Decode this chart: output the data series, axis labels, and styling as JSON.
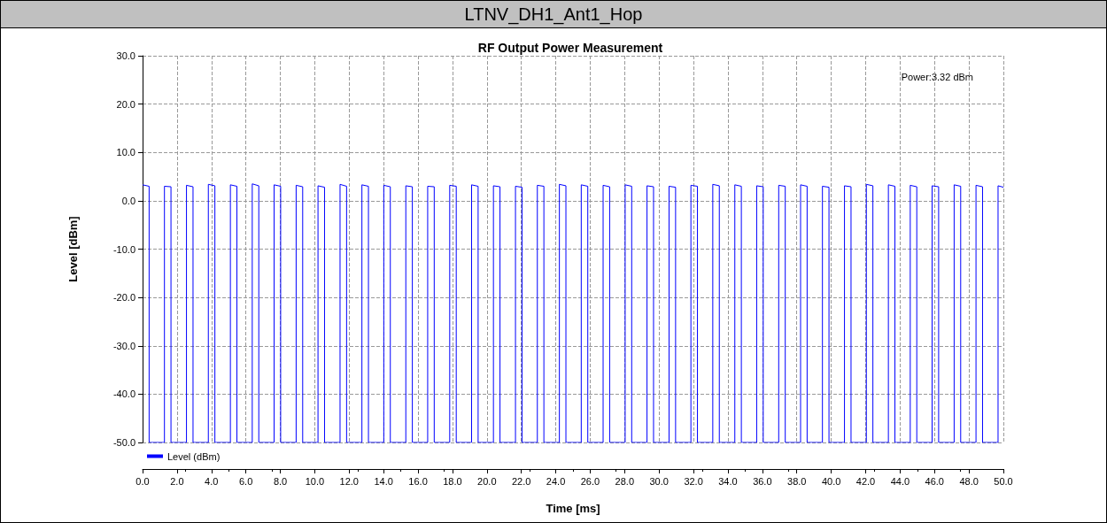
{
  "chart_data": {
    "type": "line",
    "title": "LTNV_DH1_Ant1_Hop",
    "subtitle": "RF Output Power Measurement",
    "xlabel": "Time [ms]",
    "ylabel": "Level [dBm]",
    "annotations": [
      "Power:3.32 dBm"
    ],
    "xlim": [
      0,
      50
    ],
    "ylim": [
      -50,
      30
    ],
    "xticks": [
      {
        "value": 0,
        "label": "0.0"
      },
      {
        "value": 2,
        "label": "2.0"
      },
      {
        "value": 4,
        "label": "4.0"
      },
      {
        "value": 6,
        "label": "6.0"
      },
      {
        "value": 8,
        "label": "8.0"
      },
      {
        "value": 10,
        "label": "10.0"
      },
      {
        "value": 12,
        "label": "12.0"
      },
      {
        "value": 14,
        "label": "14.0"
      },
      {
        "value": 16,
        "label": "16.0"
      },
      {
        "value": 18,
        "label": "18.0"
      },
      {
        "value": 20,
        "label": "20.0"
      },
      {
        "value": 22,
        "label": "22.0"
      },
      {
        "value": 24,
        "label": "24.0"
      },
      {
        "value": 26,
        "label": "26.0"
      },
      {
        "value": 28,
        "label": "28.0"
      },
      {
        "value": 30,
        "label": "30.0"
      },
      {
        "value": 32,
        "label": "32.0"
      },
      {
        "value": 34,
        "label": "34.0"
      },
      {
        "value": 36,
        "label": "36.0"
      },
      {
        "value": 38,
        "label": "38.0"
      },
      {
        "value": 40,
        "label": "40.0"
      },
      {
        "value": 42,
        "label": "42.0"
      },
      {
        "value": 44,
        "label": "44.0"
      },
      {
        "value": 46,
        "label": "46.0"
      },
      {
        "value": 48,
        "label": "48.0"
      },
      {
        "value": 50,
        "label": "50.0"
      }
    ],
    "yticks": [
      {
        "value": -50,
        "label": "-50.0"
      },
      {
        "value": -40,
        "label": "-40.0"
      },
      {
        "value": -30,
        "label": "-30.0"
      },
      {
        "value": -20,
        "label": "-20.0"
      },
      {
        "value": -10,
        "label": "-10.0"
      },
      {
        "value": 0,
        "label": "0.0"
      },
      {
        "value": 10,
        "label": "10.0"
      },
      {
        "value": 20,
        "label": "20.0"
      },
      {
        "value": 30,
        "label": "30.0"
      }
    ],
    "grid": true,
    "legend": "bottom left",
    "marker": "none",
    "line_style": "solid",
    "series": [
      {
        "name": "Level (dBm)",
        "color": "#0000ff",
        "x": [
          0,
          0.38,
          0.38,
          1.27,
          1.27,
          1.65,
          1.65,
          2.55,
          2.55,
          2.93,
          2.93,
          3.82,
          3.82,
          4.2,
          4.2,
          5.1,
          5.1,
          5.48,
          5.48,
          6.37,
          6.37,
          6.75,
          6.75,
          7.64,
          7.64,
          8.02,
          8.02,
          8.92,
          8.92,
          9.3,
          9.3,
          10.19,
          10.19,
          10.57,
          10.57,
          11.47,
          11.47,
          11.85,
          11.85,
          12.74,
          12.74,
          13.12,
          13.12,
          14.01,
          14.01,
          14.39,
          14.39,
          15.29,
          15.29,
          15.67,
          15.67,
          16.56,
          16.56,
          16.94,
          16.94,
          17.84,
          17.84,
          18.22,
          18.22,
          19.11,
          19.11,
          19.49,
          19.49,
          20.38,
          20.38,
          20.76,
          20.76,
          21.66,
          21.66,
          22.04,
          22.04,
          22.93,
          22.93,
          23.31,
          23.31,
          24.21,
          24.21,
          24.59,
          24.59,
          25.48,
          25.48,
          25.86,
          25.86,
          26.75,
          26.75,
          27.13,
          27.13,
          28.03,
          28.03,
          28.41,
          28.41,
          29.3,
          29.3,
          29.68,
          29.68,
          30.58,
          30.58,
          30.96,
          30.96,
          31.85,
          31.85,
          32.23,
          32.23,
          33.12,
          33.12,
          33.5,
          33.5,
          34.4,
          34.4,
          34.78,
          34.78,
          35.67,
          35.67,
          36.05,
          36.05,
          36.95,
          36.95,
          37.33,
          37.33,
          38.22,
          38.22,
          38.6,
          38.6,
          39.49,
          39.49,
          39.87,
          39.87,
          40.77,
          40.77,
          41.15,
          41.15,
          42.04,
          42.04,
          42.42,
          42.42,
          43.32,
          43.32,
          43.7,
          43.7,
          44.59,
          44.59,
          44.97,
          44.97,
          45.86,
          45.86,
          46.24,
          46.24,
          47.14,
          47.14,
          47.52,
          47.52,
          48.41,
          48.41,
          48.79,
          48.79,
          49.69,
          49.69,
          50
        ],
        "values": [
          3.3,
          3.0,
          -50,
          -50,
          3.0,
          2.9,
          -50,
          -50,
          3.2,
          2.9,
          -50,
          -50,
          3.4,
          3.1,
          -50,
          -50,
          3.3,
          3.0,
          -50,
          -50,
          3.5,
          3.1,
          -50,
          -50,
          3.3,
          3.0,
          -50,
          -50,
          3.2,
          2.9,
          -50,
          -50,
          3.1,
          2.8,
          -50,
          -50,
          3.4,
          3.0,
          -50,
          -50,
          3.3,
          3.0,
          -50,
          -50,
          3.2,
          2.9,
          -50,
          -50,
          3.1,
          2.9,
          -50,
          -50,
          3.0,
          2.9,
          -50,
          -50,
          3.2,
          3.0,
          -50,
          -50,
          3.3,
          3.0,
          -50,
          -50,
          3.1,
          2.9,
          -50,
          -50,
          3.0,
          2.8,
          -50,
          -50,
          3.2,
          3.0,
          -50,
          -50,
          3.4,
          3.1,
          -50,
          -50,
          3.3,
          3.0,
          -50,
          -50,
          3.2,
          2.9,
          -50,
          -50,
          3.3,
          3.0,
          -50,
          -50,
          3.1,
          2.9,
          -50,
          -50,
          3.0,
          2.8,
          -50,
          -50,
          3.2,
          3.0,
          -50,
          -50,
          3.4,
          3.1,
          -50,
          -50,
          3.3,
          3.0,
          -50,
          -50,
          3.1,
          2.9,
          -50,
          -50,
          3.2,
          3.0,
          -50,
          -50,
          3.3,
          3.0,
          -50,
          -50,
          3.0,
          2.8,
          -50,
          -50,
          3.1,
          2.9,
          -50,
          -50,
          3.4,
          3.1,
          -50,
          -50,
          3.3,
          3.0,
          -50,
          -50,
          3.2,
          2.9,
          -50,
          -50,
          3.1,
          2.9,
          -50,
          -50,
          3.3,
          3.0,
          -50,
          -50,
          3.2,
          2.9,
          -50,
          -50,
          3.1,
          2.8
        ]
      }
    ]
  }
}
